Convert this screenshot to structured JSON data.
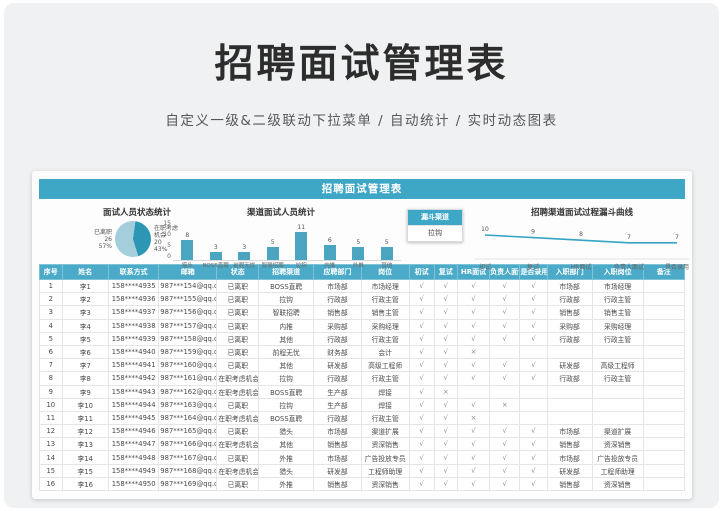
{
  "header": {
    "title": "招聘面试管理表",
    "subtitle": "自定义一级&二级联动下拉菜单 / 自动统计 / 实时动态图表"
  },
  "sheet": {
    "title_bar": "招聘面试管理表"
  },
  "colors": {
    "accent_teal": "#3fa7c6",
    "table_header": "#4aaac8",
    "bar_fill": "#4ba5c0",
    "pie_light": "#a5cedd",
    "pie_dark": "#2e96b5",
    "line_stroke": "#35a4c2"
  },
  "slicer": {
    "title": "漏斗渠道",
    "selected": "拉钩"
  },
  "chart_data": [
    {
      "type": "pie",
      "title": "面试人员状态统计",
      "slices": [
        {
          "label": "已离职",
          "value": 26,
          "pct": 57,
          "color": "#a5cedd"
        },
        {
          "label": "在职考虑机会",
          "value": 20,
          "pct": 43,
          "color": "#2e96b5"
        }
      ],
      "legend_position": "sides"
    },
    {
      "type": "bar",
      "title": "渠道面试人员统计",
      "categories": [
        "猎头",
        "BOSS直聘",
        "前程无忧",
        "智联招聘",
        "拉钩",
        "内推",
        "外推",
        "其他"
      ],
      "values": [
        8,
        3,
        3,
        5,
        11,
        6,
        5,
        5
      ],
      "ylim": [
        0,
        15
      ],
      "yticks": [
        0,
        5,
        10,
        15
      ],
      "grid": false
    },
    {
      "type": "line",
      "title": "招聘渠道面试过程漏斗曲线",
      "categories": [
        "初试",
        "复试",
        "HR面试",
        "负责人面试",
        "是否录用"
      ],
      "values": [
        10,
        9,
        8,
        7,
        7
      ],
      "ylim": [
        0,
        15
      ],
      "grid": false
    }
  ],
  "table": {
    "columns": [
      "序号",
      "姓名",
      "联系方式",
      "邮箱",
      "状态",
      "招聘渠道",
      "应聘部门",
      "岗位",
      "初试",
      "复试",
      "HR面试",
      "负责人面试",
      "是否录用",
      "入职部门",
      "入职岗位",
      "备注"
    ],
    "rows": [
      [
        "1",
        "李1",
        "158****4935",
        "987***154@qq.com",
        "已离职",
        "BOSS直聘",
        "市场部",
        "市场经理",
        "√",
        "√",
        "√",
        "√",
        "√",
        "市场部",
        "市场经理",
        ""
      ],
      [
        "2",
        "李2",
        "158****4936",
        "987***155@qq.com",
        "已离职",
        "拉钩",
        "行政部",
        "行政主管",
        "√",
        "√",
        "√",
        "√",
        "√",
        "行政部",
        "行政主管",
        ""
      ],
      [
        "3",
        "李3",
        "158****4937",
        "987***156@qq.com",
        "已离职",
        "智联招聘",
        "销售部",
        "销售主管",
        "√",
        "√",
        "√",
        "√",
        "√",
        "销售部",
        "销售主管",
        ""
      ],
      [
        "4",
        "李4",
        "158****4938",
        "987***157@qq.com",
        "已离职",
        "内推",
        "采购部",
        "采购经理",
        "√",
        "√",
        "√",
        "√",
        "√",
        "采购部",
        "采购经理",
        ""
      ],
      [
        "5",
        "李5",
        "158****4939",
        "987***158@qq.com",
        "已离职",
        "其他",
        "行政部",
        "行政主管",
        "√",
        "√",
        "√",
        "√",
        "√",
        "行政部",
        "行政主管",
        ""
      ],
      [
        "6",
        "李6",
        "158****4940",
        "987***159@qq.com",
        "已离职",
        "前程无忧",
        "财务部",
        "会计",
        "√",
        "√",
        "×",
        "",
        "",
        "",
        "",
        ""
      ],
      [
        "7",
        "李7",
        "158****4941",
        "987***160@qq.com",
        "已离职",
        "其他",
        "研发部",
        "高级工程师",
        "√",
        "√",
        "√",
        "√",
        "√",
        "研发部",
        "高级工程师",
        ""
      ],
      [
        "8",
        "李8",
        "158****4942",
        "987***161@qq.com",
        "在职考虑机会",
        "拉钩",
        "行政部",
        "行政主管",
        "√",
        "√",
        "√",
        "√",
        "√",
        "行政部",
        "行政主管",
        ""
      ],
      [
        "9",
        "李9",
        "158****4943",
        "987***162@qq.com",
        "在职考虑机会",
        "BOSS直聘",
        "生产部",
        "焊接",
        "√",
        "×",
        "",
        "",
        "",
        "",
        "",
        ""
      ],
      [
        "10",
        "李10",
        "158****4944",
        "987***163@qq.com",
        "已离职",
        "拉钩",
        "生产部",
        "焊接",
        "√",
        "√",
        "√",
        "×",
        "",
        "",
        "",
        ""
      ],
      [
        "11",
        "李11",
        "158****4945",
        "987***164@qq.com",
        "在职考虑机会",
        "BOSS直聘",
        "行政部",
        "行政主管",
        "√",
        "√",
        "×",
        "",
        "",
        "",
        "",
        ""
      ],
      [
        "12",
        "李12",
        "158****4946",
        "987***165@qq.com",
        "已离职",
        "猎头",
        "市场部",
        "渠道扩展",
        "√",
        "√",
        "√",
        "√",
        "√",
        "市场部",
        "渠道扩展",
        ""
      ],
      [
        "13",
        "李13",
        "158****4947",
        "987***166@qq.com",
        "在职考虑机会",
        "其他",
        "销售部",
        "资深销售",
        "√",
        "√",
        "√",
        "√",
        "√",
        "销售部",
        "资深销售",
        ""
      ],
      [
        "14",
        "李14",
        "158****4948",
        "987***167@qq.com",
        "已离职",
        "外推",
        "市场部",
        "广告投放专员",
        "√",
        "√",
        "√",
        "√",
        "√",
        "市场部",
        "广告投放专员",
        ""
      ],
      [
        "15",
        "李15",
        "158****4949",
        "987***168@qq.com",
        "在职考虑机会",
        "猎头",
        "研发部",
        "工程师助理",
        "√",
        "√",
        "√",
        "√",
        "√",
        "研发部",
        "工程师助理",
        ""
      ],
      [
        "16",
        "李16",
        "158****4950",
        "987***169@qq.com",
        "已离职",
        "外推",
        "销售部",
        "资深销售",
        "√",
        "√",
        "√",
        "√",
        "√",
        "销售部",
        "资深销售",
        ""
      ]
    ]
  }
}
